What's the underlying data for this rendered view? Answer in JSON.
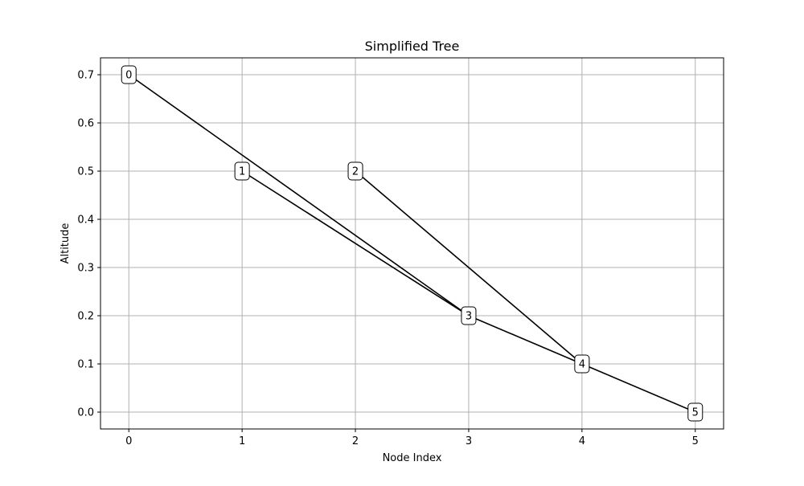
{
  "chart_data": {
    "type": "line",
    "title": "Simplified Tree",
    "xlabel": "Node Index",
    "ylabel": "Altitude",
    "xlim": [
      -0.25,
      5.25
    ],
    "ylim": [
      -0.035,
      0.735
    ],
    "xticks": [
      0,
      1,
      2,
      3,
      4,
      5
    ],
    "xtick_labels": [
      "0",
      "1",
      "2",
      "3",
      "4",
      "5"
    ],
    "yticks": [
      0.0,
      0.1,
      0.2,
      0.3,
      0.4,
      0.5,
      0.6,
      0.7
    ],
    "ytick_labels": [
      "0.0",
      "0.1",
      "0.2",
      "0.3",
      "0.4",
      "0.5",
      "0.6",
      "0.7"
    ],
    "grid": true,
    "nodes": [
      {
        "label": "0",
        "x": 0,
        "y": 0.7
      },
      {
        "label": "1",
        "x": 1,
        "y": 0.5
      },
      {
        "label": "2",
        "x": 2,
        "y": 0.5
      },
      {
        "label": "3",
        "x": 3,
        "y": 0.2
      },
      {
        "label": "4",
        "x": 4,
        "y": 0.1
      },
      {
        "label": "5",
        "x": 5,
        "y": 0.0
      }
    ],
    "edges": [
      {
        "from": 0,
        "to": 3
      },
      {
        "from": 1,
        "to": 3
      },
      {
        "from": 2,
        "to": 4
      },
      {
        "from": 3,
        "to": 4
      },
      {
        "from": 4,
        "to": 5
      }
    ],
    "colors": {
      "line": "#000000",
      "grid": "#b0b0b0",
      "node_fill": "#ffffff",
      "node_edge": "#000000"
    }
  }
}
